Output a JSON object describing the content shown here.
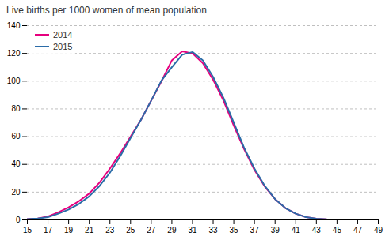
{
  "chart_data": {
    "type": "line",
    "title": "Live births per 1000 women of mean population",
    "x": [
      15,
      16,
      17,
      18,
      19,
      20,
      21,
      22,
      23,
      24,
      25,
      26,
      27,
      28,
      29,
      30,
      31,
      32,
      33,
      34,
      35,
      36,
      37,
      38,
      39,
      40,
      41,
      42,
      43,
      44,
      45,
      46,
      47,
      48,
      49
    ],
    "series": [
      {
        "name": "2014",
        "color": "#e6007e",
        "values": [
          0.5,
          1.0,
          2.5,
          5.5,
          9.0,
          13.5,
          19.0,
          27.0,
          37.0,
          48.0,
          60.0,
          72.0,
          86.0,
          100.0,
          115.0,
          121.5,
          120.0,
          113.0,
          101.0,
          86.0,
          68.0,
          51.0,
          36.0,
          24.0,
          15.0,
          8.5,
          4.5,
          2.0,
          0.9,
          0.4,
          0.2,
          0.1,
          0.05,
          0.02,
          0.01
        ]
      },
      {
        "name": "2015",
        "color": "#2b6ca8",
        "values": [
          0.5,
          1.0,
          2.0,
          4.5,
          7.5,
          11.5,
          17.0,
          24.5,
          34.0,
          46.0,
          59.0,
          72.0,
          86.0,
          100.5,
          110.0,
          119.0,
          121.0,
          115.0,
          103.0,
          88.0,
          70.0,
          52.0,
          37.0,
          24.5,
          15.0,
          8.5,
          4.5,
          2.0,
          0.9,
          0.4,
          0.2,
          0.1,
          0.05,
          0.02,
          0.01
        ]
      }
    ],
    "xlim": [
      15,
      49
    ],
    "ylim": [
      0,
      140
    ],
    "xticks": [
      15,
      17,
      19,
      21,
      23,
      25,
      27,
      29,
      31,
      33,
      35,
      37,
      39,
      41,
      43,
      45,
      47,
      49
    ],
    "yticks": [
      0,
      20,
      40,
      60,
      80,
      100,
      120,
      140
    ],
    "grid": true,
    "legend": "upper left"
  }
}
